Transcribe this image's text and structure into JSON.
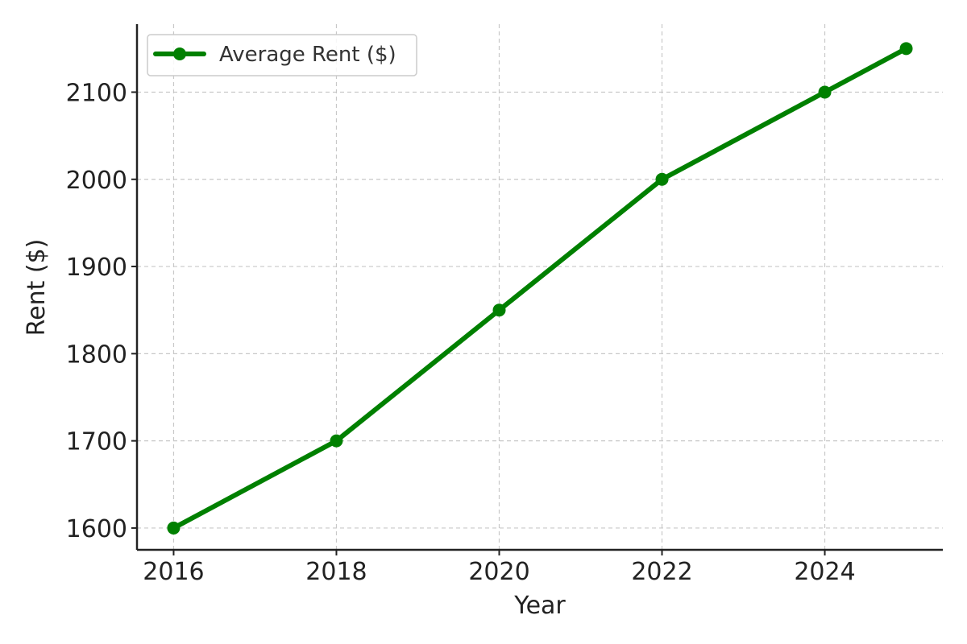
{
  "chart_data": {
    "type": "line",
    "title": "",
    "xlabel": "Year",
    "ylabel": "Rent ($)",
    "x": [
      2016,
      2018,
      2020,
      2022,
      2024,
      2025
    ],
    "series": [
      {
        "name": "Average Rent ($)",
        "values": [
          1600,
          1700,
          1850,
          2000,
          2100,
          2150
        ],
        "color": "#008000",
        "marker": "circle"
      }
    ],
    "xticks": [
      "2016",
      "2018",
      "2020",
      "2022",
      "2024"
    ],
    "yticks": [
      "1600",
      "1700",
      "1800",
      "1900",
      "2000",
      "2100"
    ],
    "xlim": [
      2015.55,
      2025.45
    ],
    "ylim": [
      1575,
      2178
    ],
    "grid": true,
    "grid_style": "dashed",
    "legend_position": "upper-left"
  }
}
